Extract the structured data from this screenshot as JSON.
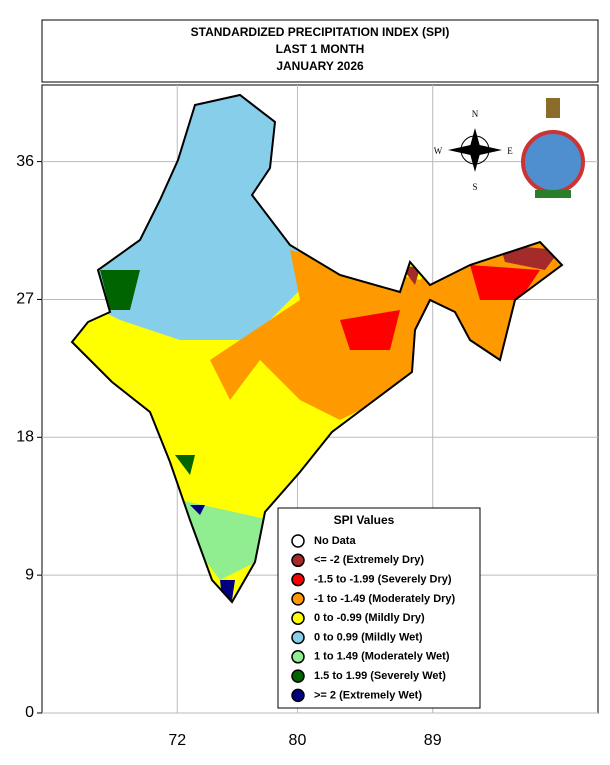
{
  "title": {
    "lines": [
      "STANDARDIZED PRECIPITATION INDEX (SPI)",
      "LAST 1 MONTH",
      "JANUARY 2026"
    ]
  },
  "axes": {
    "xlim": [
      63,
      100
    ],
    "ylim": [
      0,
      41
    ],
    "xticks": [
      72,
      80,
      89
    ],
    "yticks": [
      36,
      27,
      18,
      9,
      0
    ]
  },
  "compass": {
    "n": "N",
    "e": "E",
    "s": "S",
    "w": "W"
  },
  "legend": {
    "title": "SPI Values",
    "items": [
      {
        "label": "No Data",
        "color": "#ffffff"
      },
      {
        "label": "<= -2 (Extremely Dry)",
        "color": "#a52a2a"
      },
      {
        "label": "-1.5 to -1.99 (Severely Dry)",
        "color": "#ff0000"
      },
      {
        "label": "-1 to -1.49 (Moderately Dry)",
        "color": "#ff9900"
      },
      {
        "label": "0 to -0.99 (Mildly  Dry)",
        "color": "#ffff00"
      },
      {
        "label": "0 to 0.99 (Mildly  Wet)",
        "color": "#87ceeb"
      },
      {
        "label": "1 to 1.49 (Moderately Wet)",
        "color": "#90ee90"
      },
      {
        "label": "1.5 to 1.99 (Severely Wet)",
        "color": "#006400"
      },
      {
        "label": ">= 2 (Extremely Wet)",
        "color": "#000080"
      }
    ]
  }
}
